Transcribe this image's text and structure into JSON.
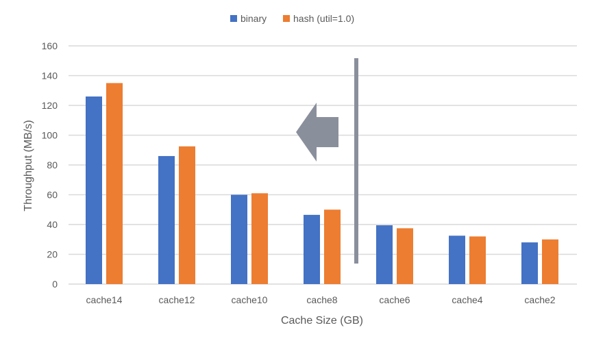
{
  "chart_data": {
    "type": "bar",
    "title": "",
    "xlabel": "Cache Size (GB)",
    "ylabel": "Throughput (MB/s)",
    "ylim": [
      0,
      160
    ],
    "yticks": [
      "0",
      "20",
      "40",
      "60",
      "80",
      "100",
      "120",
      "140",
      "160"
    ],
    "grid": true,
    "legend_position": "top",
    "categories": [
      "cache14",
      "cache12",
      "cache10",
      "cache8",
      "cache6",
      "cache4",
      "cache2"
    ],
    "series": [
      {
        "name": "binary",
        "color": "#4472C4",
        "values": [
          126,
          86,
          60,
          46.5,
          39.5,
          32.5,
          28
        ]
      },
      {
        "name": "hash (util=1.0)",
        "color": "#ED7D31",
        "values": [
          135,
          92.5,
          61,
          50,
          37.5,
          32,
          30
        ]
      }
    ],
    "annotations": {
      "arrow_direction": "left",
      "divider_color": "#8A8F9C"
    }
  }
}
